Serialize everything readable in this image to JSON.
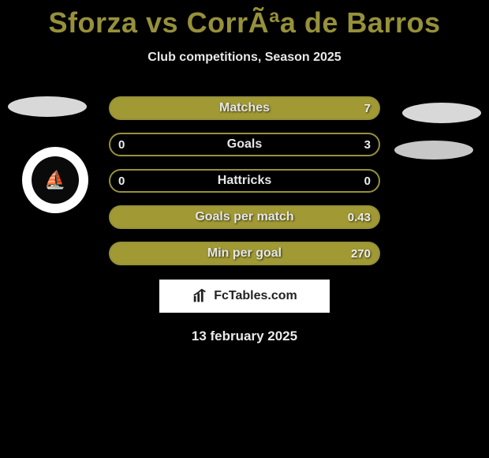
{
  "title": "Sforza vs CorrÃªa de Barros",
  "subtitle": "Club competitions, Season 2025",
  "colors": {
    "accent": "#96913a",
    "accent_fill": "#a09934",
    "text_light": "#e8e8e8",
    "background": "#000000",
    "ellipse": "#d8d8d8",
    "ellipse2": "#c7c7c7",
    "badge_bg": "#ffffff"
  },
  "rows": [
    {
      "label": "Matches",
      "left": "",
      "right": "7",
      "filled": true
    },
    {
      "label": "Goals",
      "left": "0",
      "right": "3",
      "filled": false
    },
    {
      "label": "Hattricks",
      "left": "0",
      "right": "0",
      "filled": false
    },
    {
      "label": "Goals per match",
      "left": "",
      "right": "0.43",
      "filled": true
    },
    {
      "label": "Min per goal",
      "left": "",
      "right": "270",
      "filled": true
    }
  ],
  "brand": "FcTables.com",
  "date": "13 february 2025"
}
